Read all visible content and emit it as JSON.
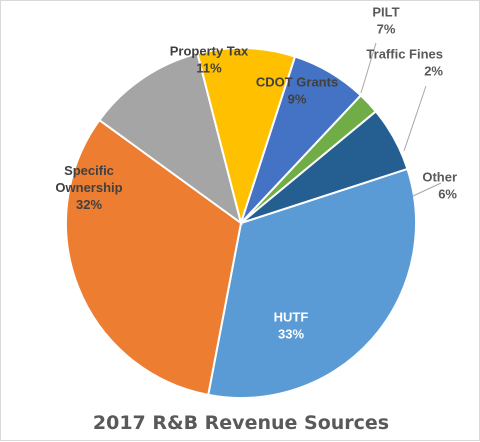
{
  "chart_data": {
    "type": "pie",
    "title": "2017 R&B Revenue Sources",
    "legend": "none",
    "slices": [
      {
        "name": "HUTF",
        "value": 33,
        "label": "33%",
        "color": "#5b9bd5"
      },
      {
        "name": "Specific Ownership",
        "value": 32,
        "label": "32%",
        "color": "#ed7d31"
      },
      {
        "name": "Property Tax",
        "value": 11,
        "label": "11%",
        "color": "#a5a5a5"
      },
      {
        "name": "CDOT Grants",
        "value": 9,
        "label": "9%",
        "color": "#ffc000"
      },
      {
        "name": "PILT",
        "value": 7,
        "label": "7%",
        "color": "#4472c4"
      },
      {
        "name": "Traffic Fines",
        "value": 2,
        "label": "2%",
        "color": "#70ad47"
      },
      {
        "name": "Other",
        "value": 6,
        "label": "6%",
        "color": "#255e91"
      }
    ]
  }
}
